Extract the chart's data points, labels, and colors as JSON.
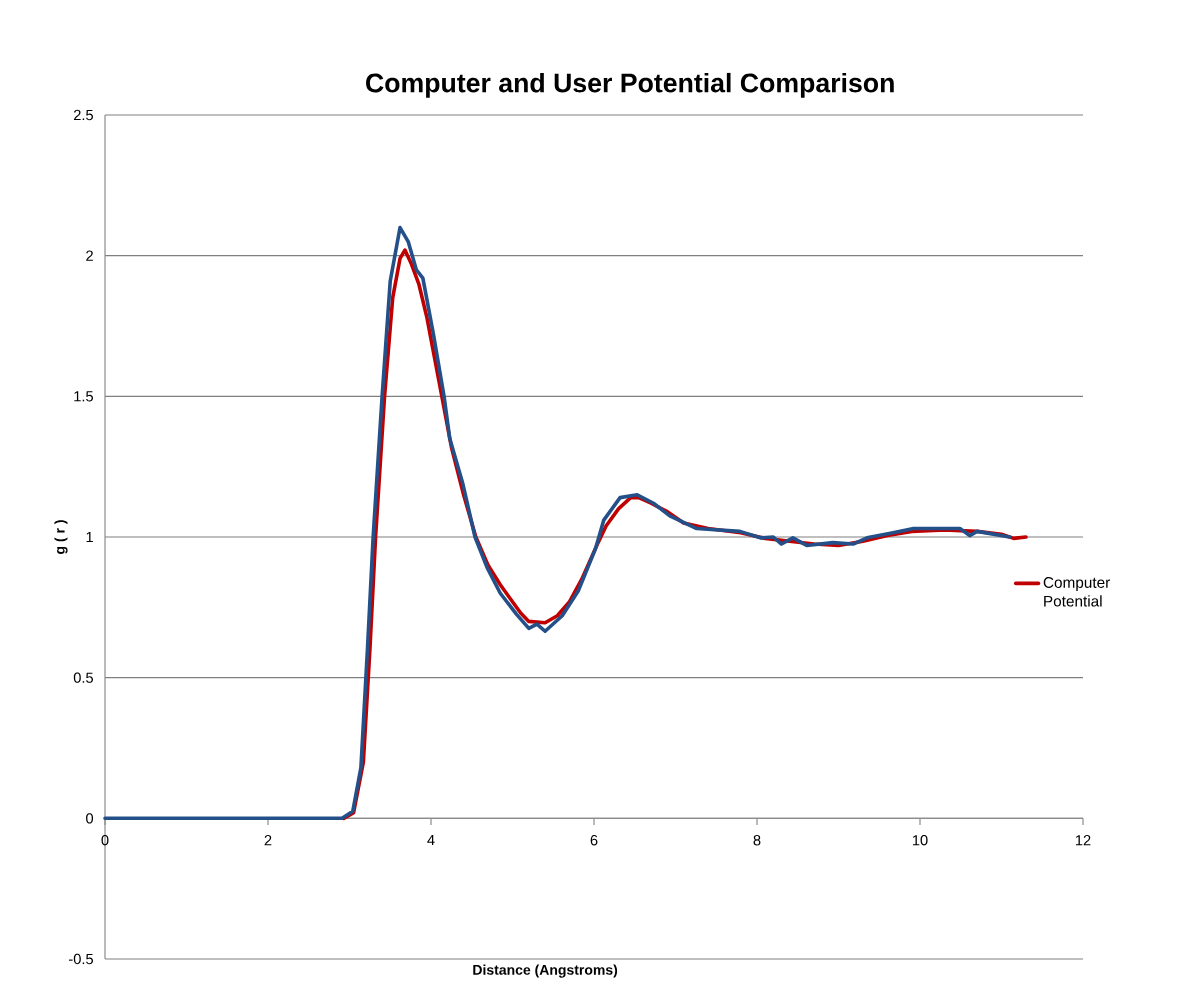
{
  "chart_data": {
    "type": "line",
    "title": "Computer and User Potential Comparison",
    "xlabel": "Distance (Angstroms)",
    "ylabel": "g ( r )",
    "xlim": [
      0,
      12
    ],
    "xticks": [
      0,
      2,
      4,
      6,
      8,
      10,
      12
    ],
    "ylim": [
      -0.5,
      2.5
    ],
    "yticks": [
      -0.5,
      0,
      0.5,
      1,
      1.5,
      2,
      2.5
    ],
    "grid": "y",
    "legend": "right",
    "marker": "none",
    "line_style": "solid",
    "series": [
      {
        "name": "Computer Potential",
        "color": "#c00000",
        "x": [
          2.93,
          3.05,
          3.17,
          3.25,
          3.32,
          3.43,
          3.53,
          3.62,
          3.68,
          3.76,
          3.85,
          3.95,
          4.1,
          4.25,
          4.4,
          4.55,
          4.7,
          4.85,
          5.0,
          5.1,
          5.2,
          5.4,
          5.55,
          5.7,
          5.85,
          6.05,
          6.15,
          6.3,
          6.45,
          6.55,
          6.7,
          6.9,
          7.1,
          7.4,
          7.8,
          8.1,
          8.4,
          8.7,
          9.0,
          9.3,
          9.6,
          9.9,
          10.3,
          10.7,
          11.0,
          11.15,
          11.3
        ],
        "values": [
          0,
          0.02,
          0.2,
          0.6,
          1.0,
          1.5,
          1.85,
          1.99,
          2.02,
          1.97,
          1.9,
          1.78,
          1.55,
          1.32,
          1.15,
          1.0,
          0.9,
          0.83,
          0.77,
          0.73,
          0.7,
          0.695,
          0.72,
          0.77,
          0.85,
          0.98,
          1.04,
          1.1,
          1.14,
          1.14,
          1.12,
          1.09,
          1.05,
          1.03,
          1.015,
          0.995,
          0.985,
          0.975,
          0.97,
          0.985,
          1.005,
          1.02,
          1.025,
          1.02,
          1.01,
          0.995,
          1.0
        ]
      },
      {
        "color": "#24508a",
        "x": [
          0,
          1,
          2,
          2.91,
          3.04,
          3.14,
          3.22,
          3.29,
          3.4,
          3.5,
          3.62,
          3.72,
          3.82,
          3.9,
          4.03,
          4.16,
          4.23,
          4.39,
          4.54,
          4.69,
          4.85,
          5.05,
          5.2,
          5.3,
          5.4,
          5.61,
          5.81,
          6.02,
          6.12,
          6.32,
          6.53,
          6.73,
          6.93,
          7.26,
          7.79,
          8.04,
          8.2,
          8.3,
          8.44,
          8.61,
          8.93,
          9.18,
          9.35,
          9.67,
          9.92,
          10.2,
          10.49,
          10.61,
          10.7,
          11.1
        ],
        "values": [
          0,
          0,
          0,
          0,
          0.025,
          0.18,
          0.6,
          1.0,
          1.5,
          1.91,
          2.1,
          2.05,
          1.95,
          1.92,
          1.72,
          1.5,
          1.35,
          1.19,
          1.0,
          0.89,
          0.8,
          0.725,
          0.675,
          0.69,
          0.665,
          0.72,
          0.81,
          0.96,
          1.06,
          1.14,
          1.15,
          1.12,
          1.075,
          1.03,
          1.02,
          0.997,
          1.0,
          0.975,
          0.997,
          0.97,
          0.98,
          0.975,
          0.997,
          1.015,
          1.03,
          1.03,
          1.03,
          1.005,
          1.02,
          1.0
        ]
      }
    ]
  }
}
